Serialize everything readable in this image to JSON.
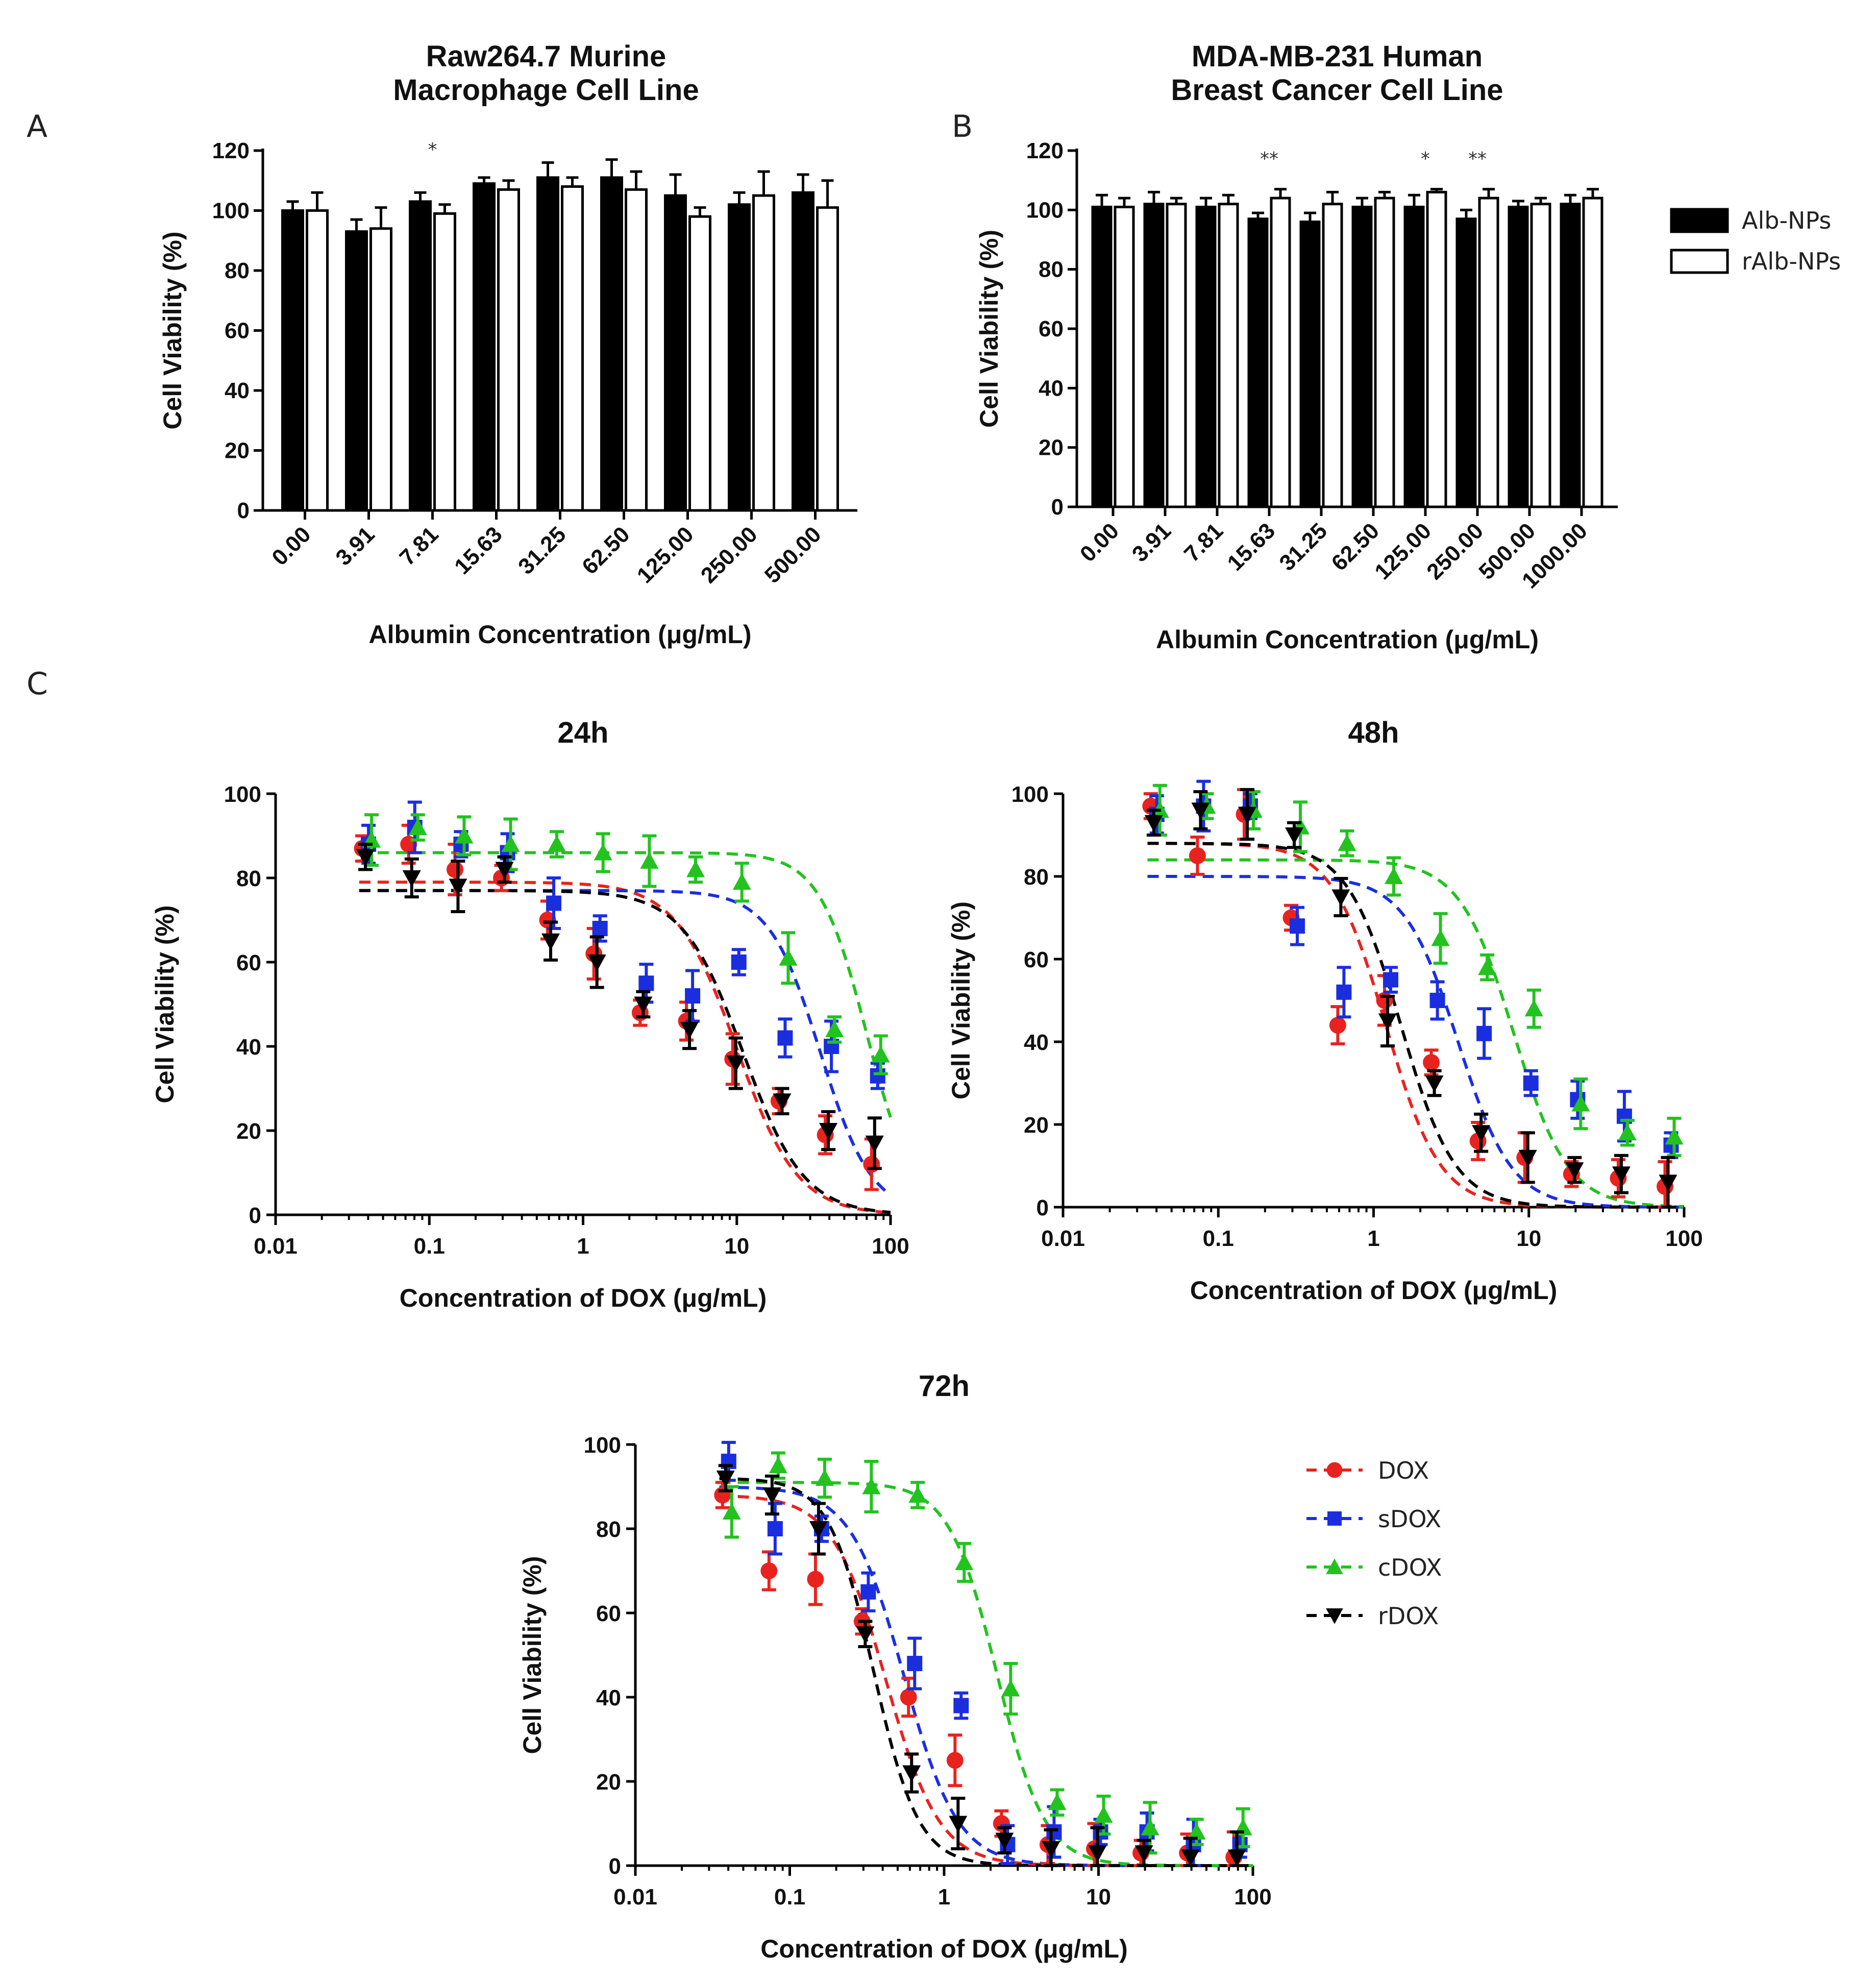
{
  "panel_letters": [
    "A",
    "B",
    "C"
  ],
  "chart_data": [
    {
      "id": "A",
      "type": "bar",
      "title": [
        "Raw264.7 Murine",
        "Macrophage Cell  Line"
      ],
      "xlabel": "Albumin Concentration (μg/mL)",
      "ylabel": "Cell Viability (%)",
      "ylim": [
        0,
        120
      ],
      "yticks": [
        0,
        20,
        40,
        60,
        80,
        100,
        120
      ],
      "categories": [
        "0.00",
        "3.91",
        "7.81",
        "15.63",
        "31.25",
        "62.50",
        "125.00",
        "250.00",
        "500.00"
      ],
      "series": [
        {
          "name": "Alb-NPs",
          "color": "#000000",
          "values": [
            100,
            93,
            103,
            109,
            111,
            111,
            105,
            102,
            106
          ],
          "errors": [
            3,
            4,
            3,
            2,
            5,
            6,
            7,
            4,
            6
          ]
        },
        {
          "name": "rAlb-NPs",
          "color": "#ffffff",
          "values": [
            100,
            94,
            99,
            107,
            108,
            107,
            98,
            105,
            101
          ],
          "errors": [
            6,
            7,
            3,
            3,
            3,
            6,
            3,
            8,
            9
          ]
        }
      ],
      "significance": [
        {
          "category": "7.81",
          "label": "*"
        }
      ]
    },
    {
      "id": "B",
      "type": "bar",
      "title": [
        "MDA-MB-231 Human",
        "Breast Cancer Cell Line"
      ],
      "xlabel": "Albumin Concentration (μg/mL)",
      "ylabel": "Cell Viability (%)",
      "ylim": [
        0,
        120
      ],
      "yticks": [
        0,
        20,
        40,
        60,
        80,
        100,
        120
      ],
      "categories": [
        "0.00",
        "3.91",
        "7.81",
        "15.63",
        "31.25",
        "62.50",
        "125.00",
        "250.00",
        "500.00",
        "1000.00"
      ],
      "series": [
        {
          "name": "Alb-NPs",
          "color": "#000000",
          "values": [
            101,
            102,
            101,
            97,
            96,
            101,
            101,
            97,
            101,
            102
          ],
          "errors": [
            4,
            4,
            3,
            2,
            3,
            3,
            4,
            3,
            2,
            3
          ]
        },
        {
          "name": "rAlb-NPs",
          "color": "#ffffff",
          "values": [
            101,
            102,
            102,
            104,
            102,
            104,
            106,
            104,
            102,
            104
          ],
          "errors": [
            3,
            2,
            3,
            3,
            4,
            2,
            1,
            3,
            2,
            3
          ]
        }
      ],
      "significance": [
        {
          "category": "15.63",
          "label": "**"
        },
        {
          "category": "125.00",
          "label": "*"
        },
        {
          "category": "250.00",
          "label": "**"
        }
      ],
      "legend": [
        {
          "name": "Alb-NPs",
          "color": "#000000"
        },
        {
          "name": "rAlb-NPs",
          "color": "#ffffff"
        }
      ]
    },
    {
      "id": "C-24h",
      "type": "scatter",
      "title": "24h",
      "xlabel": "Concentration of DOX (μg/mL)",
      "ylabel": "Cell Viability (%)",
      "xscale": "log",
      "xlim": [
        0.01,
        100
      ],
      "xticks": [
        0.01,
        0.1,
        1,
        10,
        100
      ],
      "xtick_labels": [
        "0.01",
        "0.1",
        "1",
        "10",
        "100"
      ],
      "ylim": [
        0,
        100
      ],
      "yticks": [
        0,
        20,
        40,
        60,
        80,
        100
      ],
      "series": [
        {
          "name": "DOX",
          "color": "#e8231f",
          "marker": "circle",
          "x": [
            0.039,
            0.078,
            0.156,
            0.313,
            0.625,
            1.25,
            2.5,
            5,
            10,
            20,
            40,
            80
          ],
          "y": [
            87,
            88,
            82,
            80,
            70,
            62,
            48,
            46,
            37,
            27,
            19,
            12
          ],
          "fit": {
            "top": 79,
            "bottom": 0,
            "ec50": 10,
            "hill": 2.2
          }
        },
        {
          "name": "sDOX",
          "color": "#1a2ee0",
          "marker": "square",
          "x": [
            0.039,
            0.078,
            0.156,
            0.313,
            0.625,
            1.25,
            2.5,
            5,
            10,
            20,
            40,
            80
          ],
          "y": [
            88,
            92,
            88,
            86,
            74,
            68,
            55,
            52,
            60,
            42,
            40,
            33
          ],
          "fit": {
            "top": 77,
            "bottom": 0,
            "ec50": 35,
            "hill": 2.6
          }
        },
        {
          "name": "cDOX",
          "color": "#22c31f",
          "marker": "triangle-up",
          "x": [
            0.039,
            0.078,
            0.156,
            0.313,
            0.625,
            1.25,
            2.5,
            5,
            10,
            20,
            40,
            80
          ],
          "y": [
            89,
            92,
            90,
            88,
            88,
            86,
            84,
            82,
            79,
            61,
            44,
            38
          ],
          "fit": {
            "top": 86,
            "bottom": 0,
            "ec50": 70,
            "hill": 2.8
          }
        },
        {
          "name": "rDOX",
          "color": "#000000",
          "marker": "triangle-down",
          "x": [
            0.039,
            0.078,
            0.156,
            0.313,
            0.625,
            1.25,
            2.5,
            5,
            10,
            20,
            40,
            80
          ],
          "y": [
            85,
            80,
            78,
            82,
            65,
            60,
            50,
            44,
            36,
            27,
            20,
            17
          ],
          "fit": {
            "top": 77,
            "bottom": 0,
            "ec50": 11,
            "hill": 2.2
          }
        }
      ]
    },
    {
      "id": "C-48h",
      "type": "scatter",
      "title": "48h",
      "xlabel": "Concentration of DOX (μg/mL)",
      "ylabel": "Cell Viability (%)",
      "xscale": "log",
      "xlim": [
        0.01,
        100
      ],
      "xticks": [
        0.01,
        0.1,
        1,
        10,
        100
      ],
      "xtick_labels": [
        "0.01",
        "0.1",
        "1",
        "10",
        "100"
      ],
      "ylim": [
        0,
        100
      ],
      "yticks": [
        0,
        20,
        40,
        60,
        80,
        100
      ],
      "series": [
        {
          "name": "DOX",
          "color": "#e8231f",
          "marker": "circle",
          "x": [
            0.039,
            0.078,
            0.156,
            0.313,
            0.625,
            1.25,
            2.5,
            5,
            10,
            20,
            40,
            80
          ],
          "y": [
            97,
            85,
            95,
            70,
            44,
            50,
            35,
            16,
            12,
            8,
            7,
            5
          ],
          "fit": {
            "top": 88,
            "bottom": 0,
            "ec50": 1.2,
            "hill": 2.5
          }
        },
        {
          "name": "sDOX",
          "color": "#1a2ee0",
          "marker": "square",
          "x": [
            0.039,
            0.078,
            0.156,
            0.313,
            0.625,
            1.25,
            2.5,
            5,
            10,
            20,
            40,
            80
          ],
          "y": [
            95,
            97,
            97,
            68,
            52,
            55,
            50,
            42,
            30,
            26,
            22,
            15
          ],
          "fit": {
            "top": 80,
            "bottom": 0,
            "ec50": 3.5,
            "hill": 2.5
          }
        },
        {
          "name": "cDOX",
          "color": "#22c31f",
          "marker": "triangle-up",
          "x": [
            0.039,
            0.078,
            0.156,
            0.313,
            0.625,
            1.25,
            2.5,
            5,
            10,
            20,
            40,
            80
          ],
          "y": [
            96,
            97,
            96,
            92,
            88,
            80,
            65,
            58,
            48,
            25,
            18,
            17
          ],
          "fit": {
            "top": 84,
            "bottom": 0,
            "ec50": 8,
            "hill": 2.5
          }
        },
        {
          "name": "rDOX",
          "color": "#000000",
          "marker": "triangle-down",
          "x": [
            0.039,
            0.078,
            0.156,
            0.313,
            0.625,
            1.25,
            2.5,
            5,
            10,
            20,
            40,
            80
          ],
          "y": [
            93,
            96,
            95,
            90,
            75,
            45,
            30,
            18,
            12,
            9,
            8,
            6
          ],
          "fit": {
            "top": 88,
            "bottom": 0,
            "ec50": 1.5,
            "hill": 2.5
          }
        }
      ]
    },
    {
      "id": "C-72h",
      "type": "scatter",
      "title": "72h",
      "xlabel": "Concentration of DOX (μg/mL)",
      "ylabel": "Cell Viability (%)",
      "xscale": "log",
      "xlim": [
        0.01,
        100
      ],
      "xticks": [
        0.01,
        0.1,
        1,
        10,
        100
      ],
      "xtick_labels": [
        "0.01",
        "0.1",
        "1",
        "10",
        "100"
      ],
      "ylim": [
        0,
        100
      ],
      "yticks": [
        0,
        20,
        40,
        60,
        80,
        100
      ],
      "series": [
        {
          "name": "DOX",
          "color": "#e8231f",
          "marker": "circle",
          "x": [
            0.039,
            0.078,
            0.156,
            0.313,
            0.625,
            1.25,
            2.5,
            5,
            10,
            20,
            40,
            80
          ],
          "y": [
            88,
            70,
            68,
            58,
            40,
            25,
            10,
            5,
            4,
            3,
            3,
            2
          ],
          "fit": {
            "top": 88,
            "bottom": 0,
            "ec50": 0.42,
            "hill": 2.5
          }
        },
        {
          "name": "sDOX",
          "color": "#1a2ee0",
          "marker": "square",
          "x": [
            0.039,
            0.078,
            0.156,
            0.313,
            0.625,
            1.25,
            2.5,
            5,
            10,
            20,
            40,
            80
          ],
          "y": [
            96,
            80,
            80,
            65,
            48,
            38,
            5,
            8,
            8,
            8,
            5,
            5
          ],
          "fit": {
            "top": 90,
            "bottom": 0,
            "ec50": 0.55,
            "hill": 2.5
          }
        },
        {
          "name": "cDOX",
          "color": "#22c31f",
          "marker": "triangle-up",
          "x": [
            0.039,
            0.078,
            0.156,
            0.313,
            0.625,
            1.25,
            2.5,
            5,
            10,
            20,
            40,
            80
          ],
          "y": [
            84,
            95,
            92,
            90,
            88,
            72,
            42,
            15,
            12,
            9,
            8,
            9
          ],
          "fit": {
            "top": 91,
            "bottom": 0,
            "ec50": 2.2,
            "hill": 2.8
          }
        },
        {
          "name": "rDOX",
          "color": "#000000",
          "marker": "triangle-down",
          "x": [
            0.039,
            0.078,
            0.156,
            0.313,
            0.625,
            1.25,
            2.5,
            5,
            10,
            20,
            40,
            80
          ],
          "y": [
            92,
            88,
            80,
            55,
            22,
            10,
            6,
            4,
            3,
            3,
            2,
            2
          ],
          "fit": {
            "top": 92,
            "bottom": 0,
            "ec50": 0.35,
            "hill": 3.0
          }
        }
      ],
      "legend": [
        {
          "name": "DOX",
          "color": "#e8231f",
          "marker": "circle"
        },
        {
          "name": "sDOX",
          "color": "#1a2ee0",
          "marker": "square"
        },
        {
          "name": "cDOX",
          "color": "#22c31f",
          "marker": "triangle-up"
        },
        {
          "name": "rDOX",
          "color": "#000000",
          "marker": "triangle-down"
        }
      ]
    }
  ]
}
